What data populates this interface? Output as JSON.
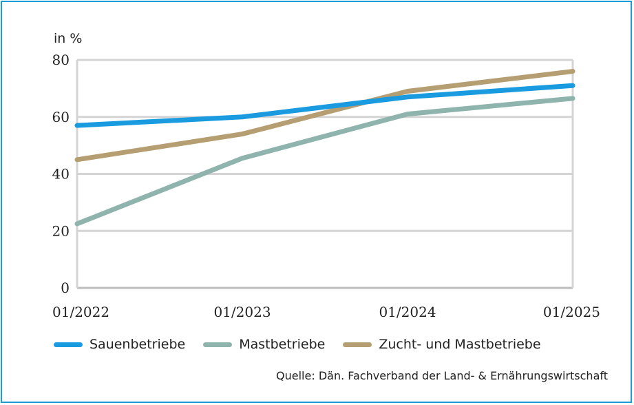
{
  "chart_data": {
    "type": "line",
    "unit_label": "in %",
    "categories": [
      "01/2022",
      "01/2023",
      "01/2024",
      "01/2025"
    ],
    "y_ticks": [
      "0",
      "20",
      "40",
      "60",
      "80"
    ],
    "ylim": [
      0,
      80
    ],
    "grid": true,
    "legend_placement": "bottom",
    "series": [
      {
        "name": "Sauenbetriebe",
        "color": "#1a9be0",
        "values": [
          57,
          60,
          67,
          71
        ]
      },
      {
        "name": "Mastbetriebe",
        "color": "#8fb3ad",
        "values": [
          22.5,
          45.5,
          61,
          66.5
        ]
      },
      {
        "name": "Zucht- und Mastbetriebe",
        "color": "#b59e72",
        "values": [
          45,
          54,
          69,
          76
        ]
      }
    ],
    "source": "Quelle: Dän. Fachverband der Land- & Ernährungswirtschaft"
  },
  "colors": {
    "frame": "#1a9cd8",
    "grid": "#d4d4d4",
    "axis": "#bdbdbd"
  }
}
